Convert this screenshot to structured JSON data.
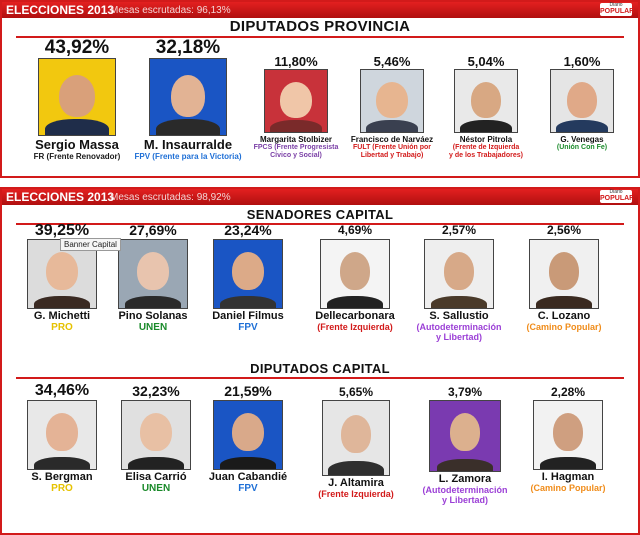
{
  "colors": {
    "accent": "#d21a1a",
    "fr": "#1a1a1a",
    "fpv": "#1e6fd6",
    "fpcs": "#7a3fa6",
    "fult": "#d21a1a",
    "fit": "#d21a1a",
    "ucf": "#1a8a2a",
    "pro": "#e6c200",
    "unen": "#1a8a2a",
    "adl": "#9b3fd6",
    "cp": "#f08c1a"
  },
  "panel1": {
    "title": "ELECCIONES 2013",
    "mesas": "Mesas escrutadas: 96,13%",
    "logo_top": "Diario",
    "logo_bottom": "POPULAR",
    "section": "DIPUTADOS PROVINCIA",
    "candidates": [
      {
        "pct": "43,92%",
        "name": "Sergio Massa",
        "party1": "FR (Frente Renovador)",
        "party2": ""
      },
      {
        "pct": "32,18%",
        "name": "M. Insaurralde",
        "party1": "FPV (Frente para la Victoria)",
        "party2": ""
      },
      {
        "pct": "11,80%",
        "name": "Margarita Stolbizer",
        "party1": "FPCS (Frente Progresista",
        "party2": "Cívico y Social)"
      },
      {
        "pct": "5,46%",
        "name": "Francisco de Narváez",
        "party1": "FULT (Frente Unión por",
        "party2": "Libertad y Trabajo)"
      },
      {
        "pct": "5,04%",
        "name": "Néstor Pitrola",
        "party1": "(Frente de Izquierda",
        "party2": "y de los Trabajadores)"
      },
      {
        "pct": "1,60%",
        "name": "G. Venegas",
        "party1": "(Unión Con Fe)",
        "party2": ""
      }
    ]
  },
  "panel2": {
    "title": "ELECCIONES 2013",
    "mesas": "Mesas escrutadas: 98,92%",
    "logo_top": "Diario",
    "logo_bottom": "POPULAR",
    "section_senadores": "SENADORES CAPITAL",
    "section_diputados": "DIPUTADOS CAPITAL",
    "tooltip": "Banner Capital",
    "senadores": [
      {
        "pct": "39,25%",
        "name": "G. Michetti",
        "party1": "PRO",
        "party2": ""
      },
      {
        "pct": "27,69%",
        "name": "Pino Solanas",
        "party1": "UNEN",
        "party2": ""
      },
      {
        "pct": "23,24%",
        "name": "Daniel Filmus",
        "party1": "FPV",
        "party2": ""
      },
      {
        "pct": "4,69%",
        "name": "Dellecarbonara",
        "party1": "(Frente Izquierda)",
        "party2": ""
      },
      {
        "pct": "2,57%",
        "name": "S. Sallustio",
        "party1": "(Autodeterminación",
        "party2": "y Libertad)"
      },
      {
        "pct": "2,56%",
        "name": "C. Lozano",
        "party1": "(Camino Popular)",
        "party2": ""
      }
    ],
    "diputados": [
      {
        "pct": "34,46%",
        "name": "S. Bergman",
        "party1": "PRO",
        "party2": ""
      },
      {
        "pct": "32,23%",
        "name": "Elisa Carrió",
        "party1": "UNEN",
        "party2": ""
      },
      {
        "pct": "21,59%",
        "name": "Juan Cabandié",
        "party1": "FPV",
        "party2": ""
      },
      {
        "pct": "5,65%",
        "name": "J. Altamira",
        "party1": "(Frente Izquierda)",
        "party2": ""
      },
      {
        "pct": "3,79%",
        "name": "L. Zamora",
        "party1": "(Autodeterminación",
        "party2": "y Libertad)"
      },
      {
        "pct": "2,28%",
        "name": "I. Hagman",
        "party1": "(Camino Popular)",
        "party2": ""
      }
    ]
  }
}
